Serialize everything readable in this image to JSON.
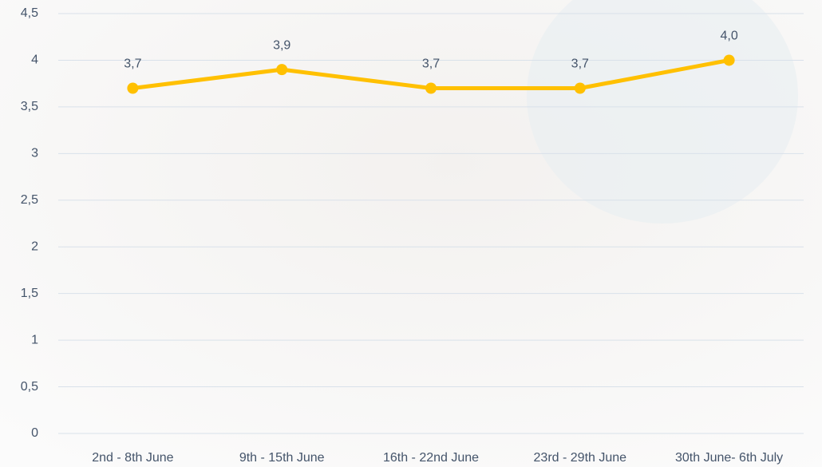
{
  "chart_data": {
    "type": "line",
    "categories": [
      "2nd - 8th June",
      "9th - 15th June",
      "16th - 22nd June",
      "23rd - 29th June",
      "30th June- 6th July"
    ],
    "values": [
      3.7,
      3.9,
      3.7,
      3.7,
      4.0
    ],
    "value_labels": [
      "3,7",
      "3,9",
      "3,7",
      "3,7",
      "4,0"
    ],
    "color": "#ffc000",
    "ylim": [
      0,
      4.5
    ],
    "yticks": [
      0,
      {
        "value": 0.5,
        "label": "0,5"
      },
      1,
      {
        "value": 1.5,
        "label": "1,5"
      },
      2,
      {
        "value": 2.5,
        "label": "2,5"
      },
      3,
      {
        "value": 3.5,
        "label": "3,5"
      },
      4,
      {
        "value": 4.5,
        "label": "4,5"
      }
    ],
    "grid": true
  }
}
